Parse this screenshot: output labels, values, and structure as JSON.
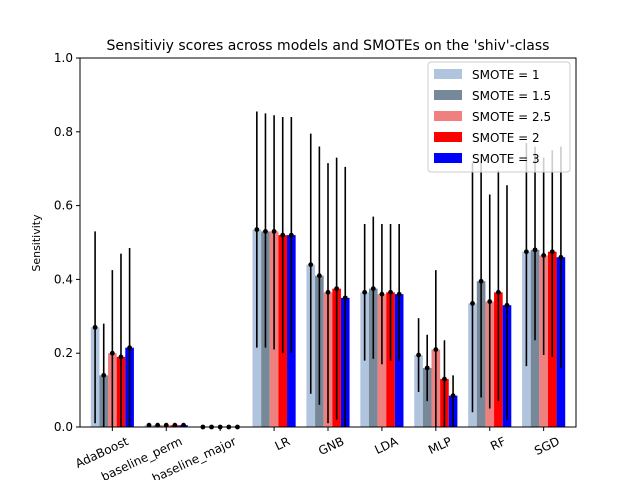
{
  "chart_data": {
    "type": "bar",
    "title": "Sensitiviy scores across models and SMOTEs on the 'shiv'-class",
    "xlabel": "",
    "ylabel": "Sensitivity",
    "ylim": [
      0,
      1.0
    ],
    "yticks": [
      "0.0",
      "0.2",
      "0.4",
      "0.6",
      "0.8",
      "1.0"
    ],
    "categories": [
      "AdaBoost",
      "baseline_perm",
      "baseline_major",
      "LR",
      "GNB",
      "LDA",
      "MLP",
      "RF",
      "SGD"
    ],
    "legend_position": "top-right",
    "series": [
      {
        "name": "SMOTE = 1",
        "color": "#b0c4de",
        "values": [
          0.27,
          0.005,
          0.0,
          0.535,
          0.44,
          0.365,
          0.195,
          0.335,
          0.475
        ],
        "err_low": [
          0.01,
          0.005,
          0.0,
          0.215,
          0.09,
          0.18,
          0.095,
          0.04,
          0.165
        ],
        "err_high": [
          0.53,
          0.005,
          0.0,
          0.855,
          0.795,
          0.55,
          0.295,
          0.715,
          0.77
        ]
      },
      {
        "name": "SMOTE = 1.5",
        "color": "#778899",
        "values": [
          0.14,
          0.005,
          0.0,
          0.53,
          0.41,
          0.375,
          0.16,
          0.395,
          0.48
        ],
        "err_low": [
          0.0,
          0.005,
          0.0,
          0.215,
          0.06,
          0.185,
          0.07,
          0.08,
          0.235
        ],
        "err_high": [
          0.28,
          0.005,
          0.0,
          0.85,
          0.76,
          0.57,
          0.25,
          0.72,
          0.76
        ]
      },
      {
        "name": "SMOTE = 2.5",
        "color": "#f08080",
        "values": [
          0.2,
          0.005,
          0.0,
          0.53,
          0.365,
          0.36,
          0.21,
          0.34,
          0.465
        ],
        "err_low": [
          0.0,
          0.005,
          0.0,
          0.21,
          0.01,
          0.17,
          0.0,
          0.05,
          0.195
        ],
        "err_high": [
          0.425,
          0.005,
          0.0,
          0.845,
          0.715,
          0.55,
          0.425,
          0.63,
          0.73
        ]
      },
      {
        "name": "SMOTE = 2",
        "color": "#ff0000",
        "values": [
          0.19,
          0.005,
          0.0,
          0.52,
          0.375,
          0.365,
          0.13,
          0.365,
          0.475
        ],
        "err_low": [
          0.0,
          0.005,
          0.0,
          0.2,
          0.02,
          0.18,
          0.0,
          0.07,
          0.19
        ],
        "err_high": [
          0.47,
          0.005,
          0.0,
          0.84,
          0.73,
          0.55,
          0.235,
          0.695,
          0.75
        ]
      },
      {
        "name": "SMOTE = 3",
        "color": "#0000ff",
        "values": [
          0.215,
          0.005,
          0.0,
          0.52,
          0.35,
          0.36,
          0.085,
          0.33,
          0.46
        ],
        "err_low": [
          0.0,
          0.005,
          0.0,
          0.2,
          0.0,
          0.18,
          0.0,
          0.02,
          0.16
        ],
        "err_high": [
          0.485,
          0.005,
          0.0,
          0.84,
          0.705,
          0.55,
          0.14,
          0.655,
          0.76
        ]
      }
    ]
  }
}
